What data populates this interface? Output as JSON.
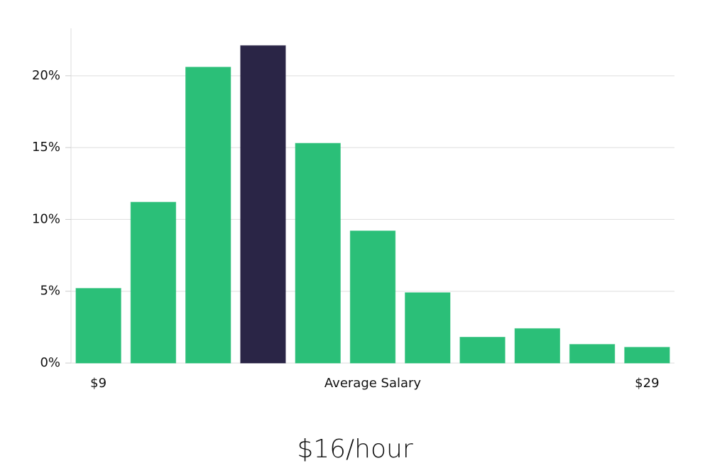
{
  "chart_data": {
    "type": "bar",
    "title": "$16/hour",
    "x_label": "Average Salary",
    "categories": [
      "$9",
      null,
      null,
      null,
      null,
      null,
      null,
      null,
      null,
      null,
      "$29"
    ],
    "values": [
      5.2,
      11.2,
      20.6,
      22.1,
      15.3,
      9.2,
      4.9,
      1.8,
      2.4,
      1.3,
      1.1
    ],
    "colors": [
      "#2bbf78",
      "#2bbf78",
      "#2bbf78",
      "#2a2546",
      "#2bbf78",
      "#2bbf78",
      "#2bbf78",
      "#2bbf78",
      "#2bbf78",
      "#2bbf78",
      "#2bbf78"
    ],
    "ylim": [
      0,
      23.3
    ],
    "yticks": [
      {
        "value": 0,
        "label": "0%"
      },
      {
        "value": 5,
        "label": "5%"
      },
      {
        "value": 10,
        "label": "10%"
      },
      {
        "value": 15,
        "label": "15%"
      },
      {
        "value": 20,
        "label": "20%"
      }
    ],
    "grid": true
  }
}
